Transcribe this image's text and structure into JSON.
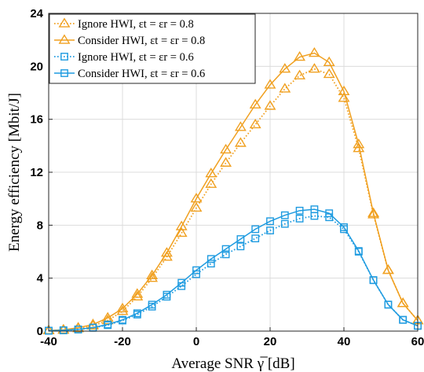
{
  "chart_data": {
    "type": "line",
    "xlabel": "Average SNR γ̅ [dB]",
    "ylabel": "Energy efficiency [Mbit/J]",
    "xlim": [
      -40,
      60
    ],
    "ylim": [
      0,
      24
    ],
    "xticks": [
      -40,
      -20,
      0,
      20,
      40,
      60
    ],
    "yticks": [
      0,
      4,
      8,
      12,
      16,
      20,
      24
    ],
    "grid": true,
    "legend_position": "top-left",
    "x": [
      -40,
      -36,
      -32,
      -28,
      -24,
      -20,
      -16,
      -12,
      -8,
      -4,
      0,
      4,
      8,
      12,
      16,
      20,
      24,
      28,
      32,
      36,
      40,
      44,
      48,
      52,
      56,
      60
    ],
    "series": [
      {
        "name": "Ignore HWI, εt = εr = 0.8",
        "color": "#f0a020",
        "line_style": "dotted",
        "marker": "triangle",
        "values": [
          0.05,
          0.08,
          0.2,
          0.4,
          0.8,
          1.5,
          2.6,
          4.0,
          5.6,
          7.4,
          9.3,
          11.1,
          12.7,
          14.2,
          15.6,
          17.0,
          18.3,
          19.3,
          19.8,
          19.4,
          17.6,
          13.8,
          8.8,
          4.6,
          2.1,
          0.8
        ]
      },
      {
        "name": "Consider HWI, εt = εr = 0.8",
        "color": "#f0a020",
        "line_style": "solid",
        "marker": "triangle",
        "values": [
          0.05,
          0.1,
          0.25,
          0.5,
          1.0,
          1.7,
          2.8,
          4.2,
          5.9,
          7.9,
          10.0,
          11.9,
          13.7,
          15.4,
          17.1,
          18.6,
          19.8,
          20.7,
          21.0,
          20.3,
          18.1,
          14.1,
          8.9,
          4.6,
          2.1,
          0.8
        ]
      },
      {
        "name": "Ignore HWI, εt = εr = 0.6",
        "color": "#1e9be0",
        "line_style": "dotted",
        "marker": "square",
        "values": [
          0.03,
          0.06,
          0.12,
          0.25,
          0.45,
          0.8,
          1.25,
          1.85,
          2.6,
          3.4,
          4.3,
          5.1,
          5.8,
          6.4,
          7.0,
          7.6,
          8.1,
          8.5,
          8.7,
          8.6,
          7.7,
          6.0,
          3.85,
          2.0,
          0.85,
          0.4
        ]
      },
      {
        "name": "Consider HWI, εt = εr = 0.6",
        "color": "#1e9be0",
        "line_style": "solid",
        "marker": "square",
        "values": [
          0.03,
          0.06,
          0.13,
          0.27,
          0.5,
          0.85,
          1.35,
          2.0,
          2.75,
          3.65,
          4.6,
          5.45,
          6.2,
          6.95,
          7.7,
          8.3,
          8.75,
          9.1,
          9.2,
          8.9,
          7.85,
          6.05,
          3.85,
          2.0,
          0.85,
          0.4
        ]
      }
    ]
  }
}
